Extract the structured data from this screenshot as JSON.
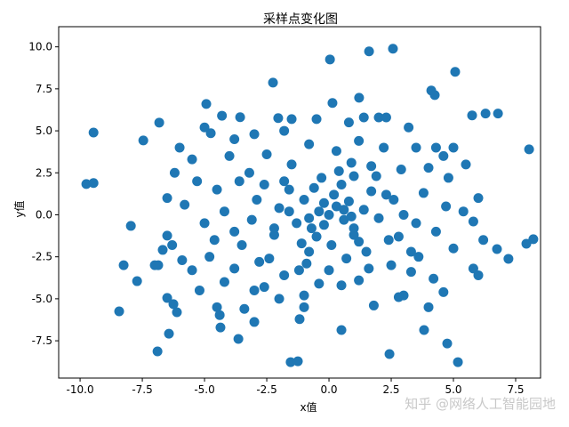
{
  "chart_data": {
    "type": "scatter",
    "title": "采样点变化图",
    "x_label": "x值",
    "y_label": "y值",
    "watermark": "知乎 @网络人工智能园地",
    "color": "#1f77b4",
    "xlim": [
      -10.86,
      8.5
    ],
    "ylim": [
      -9.72,
      11.2
    ],
    "xticks": [
      {
        "value": -10,
        "label": "-10.0"
      },
      {
        "value": -7.5,
        "label": "-7.5"
      },
      {
        "value": -5,
        "label": "-5.0"
      },
      {
        "value": -2.5,
        "label": "-2.5"
      },
      {
        "value": 0,
        "label": "0.0"
      },
      {
        "value": 2.5,
        "label": "2.5"
      },
      {
        "value": 5,
        "label": "5.0"
      },
      {
        "value": 7.5,
        "label": "7.5"
      }
    ],
    "yticks": [
      {
        "value": -7.5,
        "label": "-7.5"
      },
      {
        "value": -5,
        "label": "-5.0"
      },
      {
        "value": -2.5,
        "label": "-2.5"
      },
      {
        "value": 0,
        "label": "0.0"
      },
      {
        "value": 2.5,
        "label": "2.5"
      },
      {
        "value": 5,
        "label": "5.0"
      },
      {
        "value": 7.5,
        "label": "7.5"
      },
      {
        "value": 10,
        "label": "10.0"
      }
    ],
    "x": [
      -9.75,
      -9.46,
      -9.46,
      -8.43,
      -8.25,
      -7.96,
      -7.71,
      -7.46,
      -6.89,
      -6.82,
      -6.86,
      -6.68,
      -6.5,
      -6.43,
      -6.5,
      -6.25,
      -6.11,
      -4.93,
      -4.75,
      -3.57,
      -2.25,
      -2.04,
      -4.36,
      -4.39,
      -3.64,
      -3,
      -1.54,
      -1.25,
      -1.18,
      0.04,
      1.61,
      2.57,
      5.07,
      0.5,
      2.43,
      3.82,
      4.75,
      5.18,
      8.04,
      8.21,
      7.93,
      7.21,
      6.75,
      6.29,
      6.79,
      5.75,
      4.11,
      4.25,
      1.21,
      0.14,
      0,
      0.3,
      -0.4,
      0.6,
      -0.2,
      0.8,
      -0.8,
      0.2,
      1.0,
      -1.0,
      0.5,
      -0.5,
      1.4,
      -1.3,
      0.1,
      1.7,
      -1.6,
      1.2,
      -1.1,
      2.0,
      -2.0,
      0.4,
      -0.3,
      1.9,
      -2.2,
      2.4,
      0.7,
      -0.9,
      2.6,
      -2.6,
      3.0,
      -3.1,
      0.9,
      -1.5,
      1.6,
      -2.4,
      2.9,
      -3.2,
      3.3,
      -3.5,
      -4.0,
      -4.5,
      -5.0,
      -4.8,
      -4.2,
      -3.0,
      -2.0,
      -1.0,
      0.5,
      1.8,
      3.0,
      4.2,
      5.0,
      5.4,
      4.8,
      4.3,
      3.2,
      2.0,
      0.8,
      -0.5,
      -1.8,
      -3.0,
      -5.5,
      -6.2,
      -5.8,
      -6.3,
      -5.5,
      -4.5,
      -2.6,
      -3.8,
      -2.8,
      -1.8,
      0.0,
      1.2,
      2.5,
      3.6,
      4.3,
      3.8,
      4.0,
      2.2,
      1.2,
      -0.8,
      -2.5,
      -3.6,
      -4.2,
      -3.8,
      5.8,
      6.0,
      5.5,
      5.8,
      6.2,
      4.6,
      4.0,
      2.8,
      -1.0,
      -3.4,
      -5.2,
      -5.9,
      -7.0,
      -6.0,
      -5.0,
      -4.3,
      -3.8,
      -1.5,
      1.4,
      2.3,
      3.5,
      4.6,
      5.0,
      6.0,
      3.3,
      1.5,
      -0.8,
      -2.2,
      -0.6,
      1.0,
      2.3,
      1.0,
      -1.8,
      2.8,
      -1.2,
      0.3,
      -2.9,
      -4.6,
      -6.5,
      -5.3,
      4.7,
      3.5,
      -0.4,
      1.7,
      -1.6,
      0.6,
      -0.2,
      0.9,
      -0.7
    ],
    "values": [
      1.83,
      1.89,
      4.9,
      -5.75,
      -3.0,
      -0.66,
      -3.95,
      4.43,
      -8.13,
      5.49,
      -3.0,
      -2.09,
      -1.24,
      -7.08,
      -4.95,
      -5.32,
      -5.8,
      6.6,
      4.86,
      5.81,
      7.87,
      5.76,
      -6.71,
      -5.97,
      -7.39,
      -6.38,
      -8.77,
      -8.72,
      -6.21,
      9.25,
      9.73,
      9.89,
      8.51,
      -6.86,
      -8.29,
      -6.86,
      -7.66,
      -8.77,
      3.9,
      -1.45,
      -1.72,
      -2.62,
      -2.04,
      6.03,
      6.03,
      5.92,
      7.4,
      7.13,
      6.97,
      6.66,
      0,
      0.5,
      0.2,
      -0.3,
      -0.6,
      0.8,
      -0.2,
      1.2,
      -0.8,
      0.9,
      1.8,
      -1.3,
      0.3,
      -0.5,
      -1.8,
      1.4,
      1.5,
      -1.6,
      -1.7,
      -0.2,
      0.4,
      2.6,
      2.2,
      2.3,
      -1.2,
      -1.5,
      -2.6,
      -2.9,
      0.9,
      1.8,
      0.0,
      -0.3,
      3.1,
      3.0,
      -3.2,
      -2.6,
      2.7,
      2.5,
      -2.2,
      -1.8,
      3.5,
      1.5,
      -0.5,
      -2.5,
      -4.0,
      -4.5,
      -5.0,
      -4.8,
      -4.2,
      -5.4,
      -4.8,
      -3.8,
      -2.0,
      0.2,
      2.2,
      4.0,
      5.2,
      5.8,
      5.5,
      5.7,
      5.0,
      4.8,
      3.3,
      2.5,
      0.6,
      -1.8,
      -3.3,
      -5.5,
      -4.3,
      -3.2,
      -2.8,
      -3.6,
      -3.3,
      -3.9,
      -3.0,
      -2.5,
      -1.0,
      1.3,
      2.8,
      4.0,
      4.4,
      4.2,
      3.6,
      2.0,
      0.2,
      -1.0,
      -3.2,
      1.0,
      3.0,
      -0.4,
      -1.5,
      -4.6,
      -5.5,
      -4.9,
      -5.5,
      -5.6,
      -4.5,
      -2.7,
      -3.0,
      4.0,
      5.2,
      5.9,
      4.5,
      5.7,
      5.8,
      5.8,
      4.0,
      3.5,
      4.0,
      -3.6,
      -3.4,
      -2.2,
      -2.2,
      -0.8,
      1.6,
      2.3,
      1.2,
      -1.2,
      2.0,
      -1.3,
      -3.3,
      3.8,
      0.9,
      -1.5,
      1.0,
      2.0,
      0.5,
      -0.5,
      -4.1,
      2.9,
      0.2,
      0.3,
      0.7,
      -0.1,
      -0.8
    ]
  }
}
